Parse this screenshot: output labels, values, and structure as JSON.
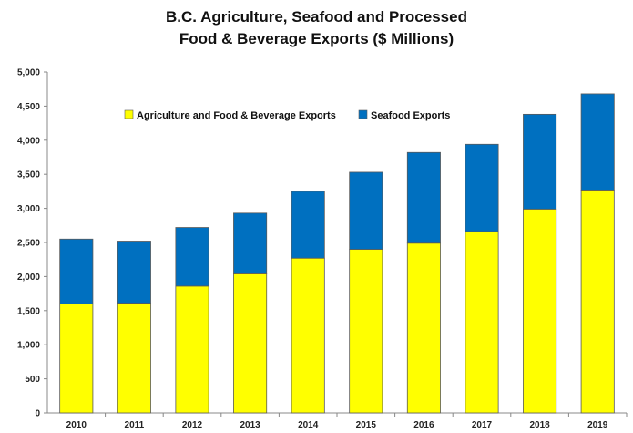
{
  "chart_data": {
    "type": "bar",
    "stacked": true,
    "title_line1": "B.C. Agriculture, Seafood and Processed",
    "title_line2": "Food & Beverage Exports ($ Millions)",
    "categories": [
      "2010",
      "2011",
      "2012",
      "2013",
      "2014",
      "2015",
      "2016",
      "2017",
      "2018",
      "2019"
    ],
    "series": [
      {
        "name": "Agriculture and Food & Beverage Exports",
        "color": "#FFFF00",
        "values": [
          1600,
          1610,
          1860,
          2040,
          2270,
          2400,
          2490,
          2660,
          2990,
          3270
        ]
      },
      {
        "name": "Seafood Exports",
        "color": "#0070C0",
        "values": [
          950,
          910,
          860,
          890,
          980,
          1130,
          1330,
          1280,
          1390,
          1410
        ]
      }
    ],
    "ylim": [
      0,
      5000
    ],
    "yticks": [
      "0",
      "500",
      "1,000",
      "1,500",
      "2,000",
      "2,500",
      "3,000",
      "3,500",
      "4,000",
      "4,500",
      "5,000"
    ],
    "grid": false,
    "legend_position": "top-left"
  }
}
